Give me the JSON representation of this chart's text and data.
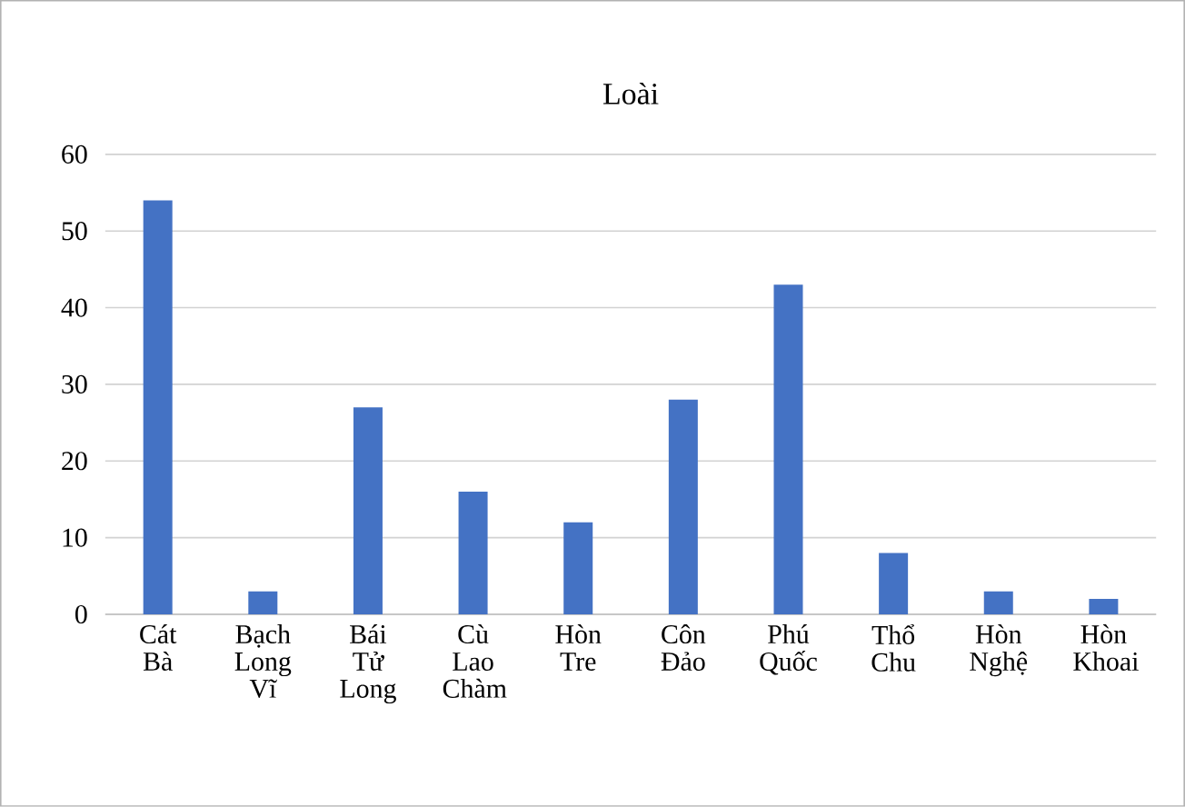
{
  "chart_data": {
    "type": "bar",
    "title": "Loài",
    "categories": [
      "Cát Bà",
      "Bạch Long Vĩ",
      "Bái Tử Long",
      "Cù Lao Chàm",
      "Hòn Tre",
      "Côn Đảo",
      "Phú Quốc",
      "Thổ Chu",
      "Hòn Nghệ",
      "Hòn Khoai"
    ],
    "values": [
      54,
      3,
      27,
      16,
      12,
      28,
      43,
      8,
      3,
      2
    ],
    "color": "#4472c4",
    "ylim": [
      0,
      60
    ],
    "yticks": [
      0,
      10,
      20,
      30,
      40,
      50,
      60
    ],
    "grid": "y"
  }
}
